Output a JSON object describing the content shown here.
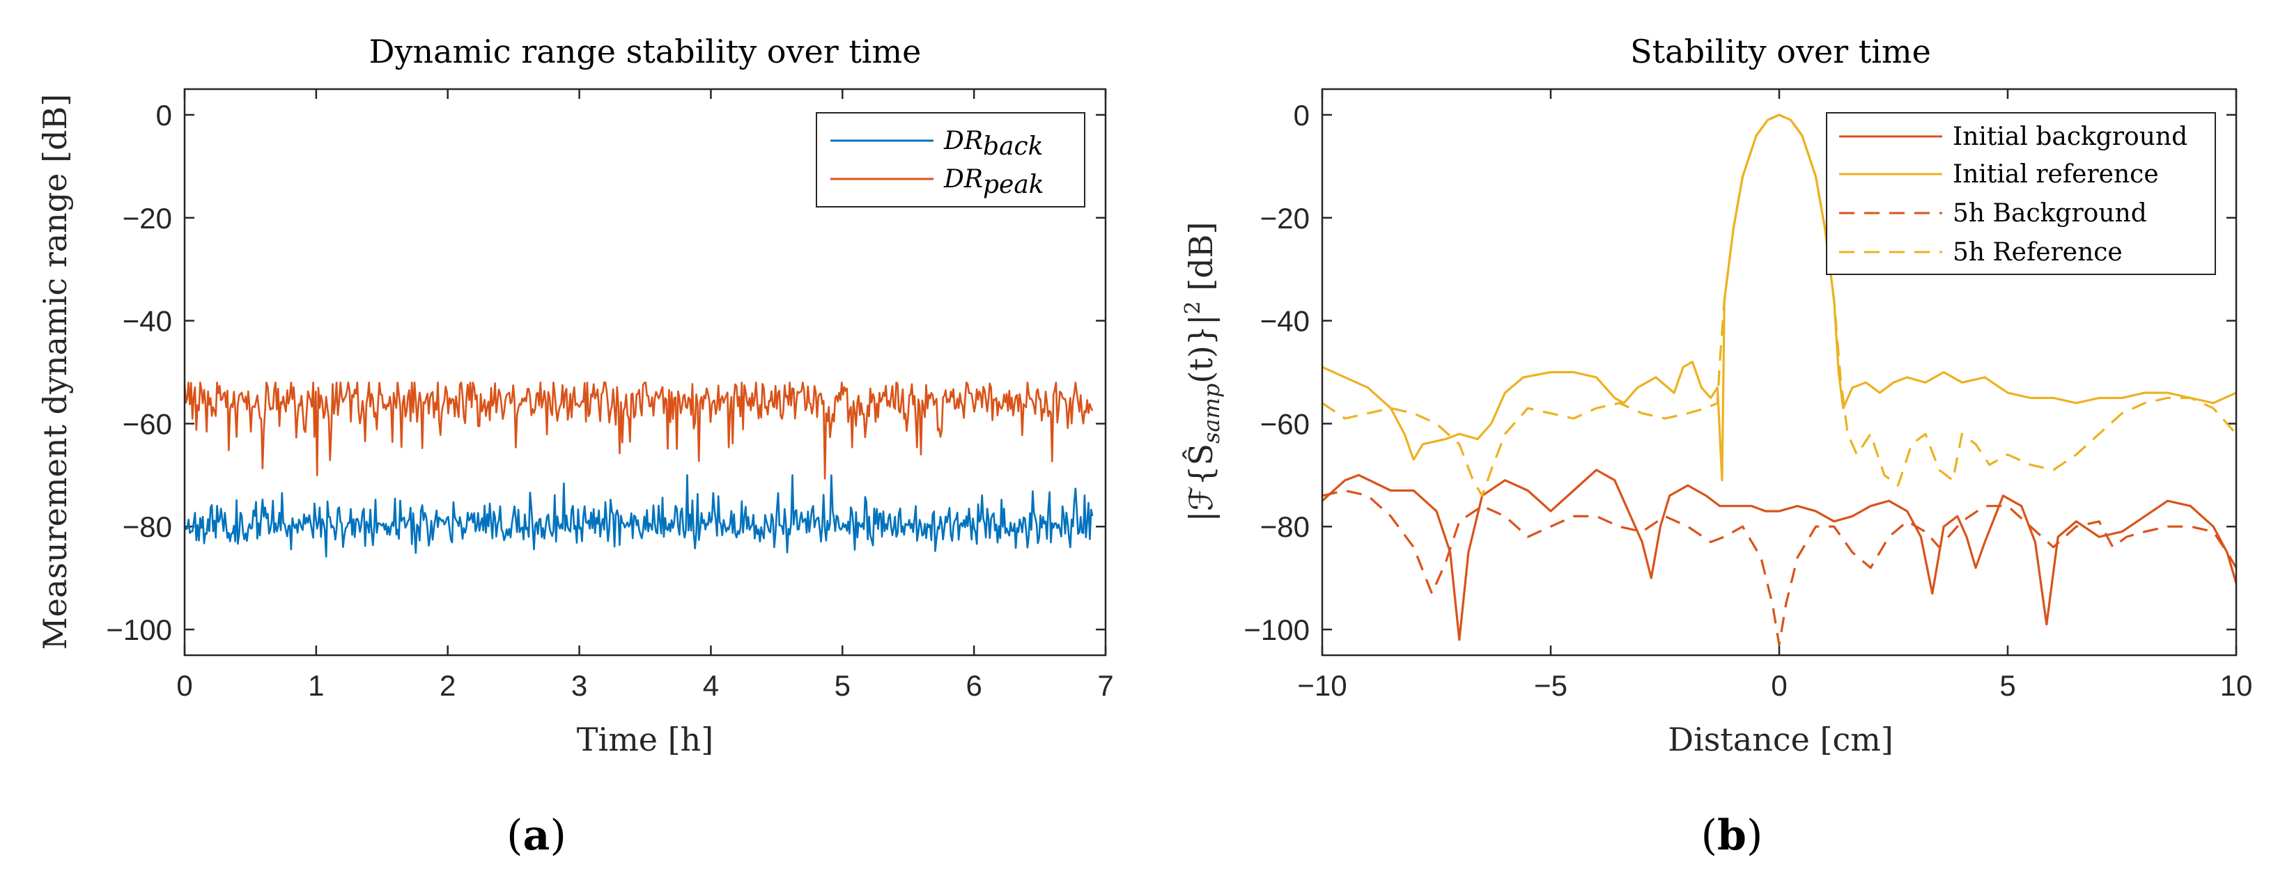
{
  "chart_data": [
    {
      "type": "line",
      "title": "Dynamic range stability over time",
      "xlabel": "Time [h]",
      "ylabel": "Measurement dynamic range [dB]",
      "xlim": [
        0,
        7
      ],
      "ylim": [
        -105,
        5
      ],
      "xticks": [
        0,
        1,
        2,
        3,
        4,
        5,
        6,
        7
      ],
      "yticks": [
        0,
        -20,
        -40,
        -60,
        -80,
        -100
      ],
      "xticklabels": [
        "0",
        "1",
        "2",
        "3",
        "4",
        "5",
        "6",
        "7"
      ],
      "yticklabels": [
        "0",
        "−20",
        "−40",
        "−60",
        "−80",
        "−100"
      ],
      "legend_position": "top-right",
      "panel_label": "a",
      "series": [
        {
          "name": "DR",
          "subscript": "back",
          "color": "#0072BD",
          "style": "solid",
          "kind": "noise",
          "t_range": [
            0,
            6.9
          ],
          "samples": 700,
          "mean": -79.5,
          "std": 2.0,
          "min": -87,
          "max": -70,
          "seed": 11
        },
        {
          "name": "DR",
          "subscript": "peak",
          "color": "#D95319",
          "style": "solid",
          "kind": "noise_dips",
          "t_range": [
            0,
            6.9
          ],
          "samples": 700,
          "mean": -55.5,
          "std": 2.2,
          "min": -73,
          "max": -52,
          "seed": 29
        }
      ]
    },
    {
      "type": "line",
      "title": "Stability over time",
      "xlabel": "Distance [cm]",
      "ylabel": "|ℱ{Ŝ",
      "ylabel_sub": "samp",
      "ylabel_tail": "(t)}|",
      "ylabel_sup": "2",
      "ylabel_unit": " [dB]",
      "xlim": [
        -10,
        10
      ],
      "ylim": [
        -105,
        5
      ],
      "xticks": [
        -10,
        -5,
        0,
        5,
        10
      ],
      "yticks": [
        0,
        -20,
        -40,
        -60,
        -80,
        -100
      ],
      "xticklabels": [
        "−10",
        "−5",
        "0",
        "5",
        "10"
      ],
      "yticklabels": [
        "0",
        "−20",
        "−40",
        "−60",
        "−80",
        "−100"
      ],
      "legend_position": "top-right",
      "panel_label": "b",
      "series": [
        {
          "name": "Initial background",
          "color": "#D95319",
          "style": "solid",
          "points": [
            [
              -10,
              -75
            ],
            [
              -9.5,
              -71
            ],
            [
              -9.2,
              -70
            ],
            [
              -8.5,
              -73
            ],
            [
              -8,
              -73
            ],
            [
              -7.5,
              -77
            ],
            [
              -7.2,
              -85
            ],
            [
              -7.0,
              -102
            ],
            [
              -6.8,
              -85
            ],
            [
              -6.5,
              -74
            ],
            [
              -6,
              -71
            ],
            [
              -5.5,
              -73
            ],
            [
              -5,
              -77
            ],
            [
              -4.5,
              -73
            ],
            [
              -4,
              -69
            ],
            [
              -3.6,
              -71
            ],
            [
              -3.3,
              -77
            ],
            [
              -3.0,
              -83
            ],
            [
              -2.8,
              -90
            ],
            [
              -2.6,
              -80
            ],
            [
              -2.4,
              -74
            ],
            [
              -2.0,
              -72
            ],
            [
              -1.6,
              -74
            ],
            [
              -1.3,
              -76
            ],
            [
              -1.0,
              -76
            ],
            [
              -0.6,
              -76
            ],
            [
              -0.3,
              -77
            ],
            [
              0,
              -77
            ],
            [
              0.4,
              -76
            ],
            [
              0.8,
              -77
            ],
            [
              1.2,
              -79
            ],
            [
              1.6,
              -78
            ],
            [
              2.0,
              -76
            ],
            [
              2.4,
              -75
            ],
            [
              2.8,
              -77
            ],
            [
              3.1,
              -82
            ],
            [
              3.35,
              -93
            ],
            [
              3.6,
              -80
            ],
            [
              3.9,
              -78
            ],
            [
              4.1,
              -82
            ],
            [
              4.3,
              -88
            ],
            [
              4.5,
              -83
            ],
            [
              4.9,
              -74
            ],
            [
              5.3,
              -76
            ],
            [
              5.6,
              -83
            ],
            [
              5.85,
              -99
            ],
            [
              6.1,
              -82
            ],
            [
              6.5,
              -79
            ],
            [
              7.0,
              -82
            ],
            [
              7.5,
              -81
            ],
            [
              8.0,
              -78
            ],
            [
              8.5,
              -75
            ],
            [
              9.0,
              -76
            ],
            [
              9.5,
              -80
            ],
            [
              9.8,
              -85
            ],
            [
              10,
              -91
            ]
          ]
        },
        {
          "name": "Initial reference",
          "color": "#EDB120",
          "style": "solid",
          "points": [
            [
              -10,
              -49
            ],
            [
              -9.5,
              -51
            ],
            [
              -9,
              -53
            ],
            [
              -8.5,
              -57
            ],
            [
              -8.2,
              -62
            ],
            [
              -8.0,
              -67
            ],
            [
              -7.8,
              -64
            ],
            [
              -7.3,
              -63
            ],
            [
              -7.0,
              -62
            ],
            [
              -6.6,
              -63
            ],
            [
              -6.3,
              -60
            ],
            [
              -6.0,
              -54
            ],
            [
              -5.6,
              -51
            ],
            [
              -5,
              -50
            ],
            [
              -4.5,
              -50
            ],
            [
              -4.0,
              -51
            ],
            [
              -3.6,
              -55
            ],
            [
              -3.4,
              -56
            ],
            [
              -3.1,
              -53
            ],
            [
              -2.7,
              -51
            ],
            [
              -2.3,
              -54
            ],
            [
              -2.1,
              -49
            ],
            [
              -1.9,
              -48
            ],
            [
              -1.7,
              -53
            ],
            [
              -1.5,
              -55
            ],
            [
              -1.35,
              -53
            ],
            [
              -1.25,
              -71
            ],
            [
              -1.2,
              -36
            ],
            [
              -1.0,
              -22
            ],
            [
              -0.8,
              -12
            ],
            [
              -0.5,
              -4
            ],
            [
              -0.25,
              -1
            ],
            [
              0,
              0
            ],
            [
              0.25,
              -1
            ],
            [
              0.5,
              -4
            ],
            [
              0.8,
              -12
            ],
            [
              1.0,
              -22
            ],
            [
              1.2,
              -36
            ],
            [
              1.3,
              -50
            ],
            [
              1.4,
              -57
            ],
            [
              1.6,
              -53
            ],
            [
              1.9,
              -52
            ],
            [
              2.2,
              -54
            ],
            [
              2.5,
              -52
            ],
            [
              2.8,
              -51
            ],
            [
              3.2,
              -52
            ],
            [
              3.6,
              -50
            ],
            [
              4.0,
              -52
            ],
            [
              4.5,
              -51
            ],
            [
              5,
              -54
            ],
            [
              5.5,
              -55
            ],
            [
              6,
              -55
            ],
            [
              6.5,
              -56
            ],
            [
              7,
              -55
            ],
            [
              7.5,
              -55
            ],
            [
              8,
              -54
            ],
            [
              8.5,
              -54
            ],
            [
              9,
              -55
            ],
            [
              9.5,
              -56
            ],
            [
              10,
              -54
            ]
          ]
        },
        {
          "name": "5h Background",
          "color": "#D95319",
          "style": "dashed",
          "points": [
            [
              -10,
              -74
            ],
            [
              -9.5,
              -73
            ],
            [
              -9,
              -74
            ],
            [
              -8.5,
              -78
            ],
            [
              -8.0,
              -84
            ],
            [
              -7.6,
              -93
            ],
            [
              -7.3,
              -87
            ],
            [
              -7.0,
              -79
            ],
            [
              -6.5,
              -76
            ],
            [
              -6.0,
              -78
            ],
            [
              -5.5,
              -82
            ],
            [
              -5.0,
              -80
            ],
            [
              -4.5,
              -78
            ],
            [
              -4.0,
              -78
            ],
            [
              -3.5,
              -80
            ],
            [
              -3.0,
              -81
            ],
            [
              -2.5,
              -78
            ],
            [
              -2.0,
              -80
            ],
            [
              -1.5,
              -83
            ],
            [
              -1.2,
              -82
            ],
            [
              -0.8,
              -80
            ],
            [
              -0.4,
              -86
            ],
            [
              -0.15,
              -95
            ],
            [
              0,
              -103
            ],
            [
              0.15,
              -95
            ],
            [
              0.4,
              -86
            ],
            [
              0.8,
              -80
            ],
            [
              1.2,
              -80
            ],
            [
              1.6,
              -85
            ],
            [
              2.0,
              -88
            ],
            [
              2.4,
              -82
            ],
            [
              2.8,
              -79
            ],
            [
              3.2,
              -81
            ],
            [
              3.5,
              -84
            ],
            [
              4.0,
              -79
            ],
            [
              4.5,
              -76
            ],
            [
              5.0,
              -76
            ],
            [
              5.5,
              -80
            ],
            [
              6.0,
              -84
            ],
            [
              6.5,
              -80
            ],
            [
              7.0,
              -79
            ],
            [
              7.3,
              -84
            ],
            [
              7.6,
              -82
            ],
            [
              8.0,
              -81
            ],
            [
              8.5,
              -80
            ],
            [
              9.0,
              -80
            ],
            [
              9.5,
              -81
            ],
            [
              9.8,
              -85
            ],
            [
              10,
              -88
            ]
          ]
        },
        {
          "name": "5h Reference",
          "color": "#EDB120",
          "style": "dashed",
          "points": [
            [
              -10,
              -56
            ],
            [
              -9.5,
              -59
            ],
            [
              -9.0,
              -58
            ],
            [
              -8.5,
              -57
            ],
            [
              -8.0,
              -58
            ],
            [
              -7.5,
              -60
            ],
            [
              -7.0,
              -64
            ],
            [
              -6.7,
              -71
            ],
            [
              -6.5,
              -74
            ],
            [
              -6.3,
              -69
            ],
            [
              -6.0,
              -62
            ],
            [
              -5.5,
              -57
            ],
            [
              -5.0,
              -58
            ],
            [
              -4.5,
              -59
            ],
            [
              -4.0,
              -57
            ],
            [
              -3.5,
              -56
            ],
            [
              -3.0,
              -58
            ],
            [
              -2.5,
              -59
            ],
            [
              -2.0,
              -58
            ],
            [
              -1.6,
              -57
            ],
            [
              -1.35,
              -56
            ],
            [
              -1.3,
              -48
            ],
            [
              -1.2,
              -36
            ],
            [
              -1.0,
              -22
            ],
            [
              -0.8,
              -12
            ],
            [
              -0.5,
              -4
            ],
            [
              -0.25,
              -1
            ],
            [
              0,
              0
            ],
            [
              0.25,
              -1
            ],
            [
              0.5,
              -4
            ],
            [
              0.8,
              -12
            ],
            [
              1.0,
              -22
            ],
            [
              1.2,
              -36
            ],
            [
              1.35,
              -52
            ],
            [
              1.5,
              -62
            ],
            [
              1.7,
              -66
            ],
            [
              2.0,
              -62
            ],
            [
              2.3,
              -70
            ],
            [
              2.6,
              -72
            ],
            [
              2.9,
              -64
            ],
            [
              3.2,
              -62
            ],
            [
              3.5,
              -69
            ],
            [
              3.8,
              -71
            ],
            [
              4.0,
              -62
            ],
            [
              4.3,
              -64
            ],
            [
              4.6,
              -68
            ],
            [
              5.0,
              -66
            ],
            [
              5.5,
              -68
            ],
            [
              6.0,
              -69
            ],
            [
              6.5,
              -66
            ],
            [
              7.0,
              -62
            ],
            [
              7.5,
              -58
            ],
            [
              8.0,
              -56
            ],
            [
              8.5,
              -55
            ],
            [
              9.0,
              -55
            ],
            [
              9.5,
              -57
            ],
            [
              10,
              -62
            ]
          ]
        }
      ]
    }
  ]
}
